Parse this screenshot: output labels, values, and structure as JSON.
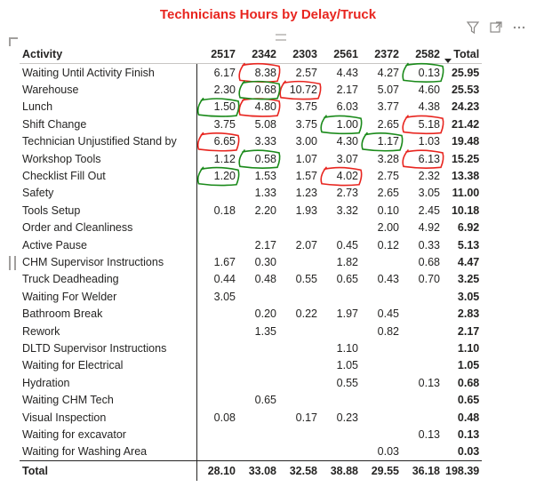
{
  "title": "Technicians Hours by Delay/Truck",
  "toolbar": {
    "icons": [
      "filter-icon",
      "focus-mode-icon",
      "more-options-icon"
    ]
  },
  "table": {
    "headers": [
      "Activity",
      "2517",
      "2342",
      "2303",
      "2561",
      "2372",
      "2582",
      "Total"
    ],
    "sorted_column": "Total",
    "rows": [
      [
        "Waiting Until Activity Finish",
        "6.17",
        "8.38",
        "2.57",
        "4.43",
        "4.27",
        "0.13",
        "25.95"
      ],
      [
        "Warehouse",
        "2.30",
        "0.68",
        "10.72",
        "2.17",
        "5.07",
        "4.60",
        "25.53"
      ],
      [
        "Lunch",
        "1.50",
        "4.80",
        "3.75",
        "6.03",
        "3.77",
        "4.38",
        "24.23"
      ],
      [
        "Shift Change",
        "3.75",
        "5.08",
        "3.75",
        "1.00",
        "2.65",
        "5.18",
        "21.42"
      ],
      [
        "Technician Unjustified Stand by",
        "6.65",
        "3.33",
        "3.00",
        "4.30",
        "1.17",
        "1.03",
        "19.48"
      ],
      [
        "Workshop Tools",
        "1.12",
        "0.58",
        "1.07",
        "3.07",
        "3.28",
        "6.13",
        "15.25"
      ],
      [
        "Checklist Fill Out",
        "1.20",
        "1.53",
        "1.57",
        "4.02",
        "2.75",
        "2.32",
        "13.38"
      ],
      [
        "Safety",
        "",
        "1.33",
        "1.23",
        "2.73",
        "2.65",
        "3.05",
        "11.00"
      ],
      [
        "Tools Setup",
        "0.18",
        "2.20",
        "1.93",
        "3.32",
        "0.10",
        "2.45",
        "10.18"
      ],
      [
        "Order and Cleanliness",
        "",
        "",
        "",
        "",
        "2.00",
        "4.92",
        "6.92"
      ],
      [
        "Active Pause",
        "",
        "2.17",
        "2.07",
        "0.45",
        "0.12",
        "0.33",
        "5.13"
      ],
      [
        "CHM Supervisor Instructions",
        "1.67",
        "0.30",
        "",
        "1.82",
        "",
        "0.68",
        "4.47"
      ],
      [
        "Truck Deadheading",
        "0.44",
        "0.48",
        "0.55",
        "0.65",
        "0.43",
        "0.70",
        "3.25"
      ],
      [
        "Waiting For Welder",
        "3.05",
        "",
        "",
        "",
        "",
        "",
        "3.05"
      ],
      [
        "Bathroom Break",
        "",
        "0.20",
        "0.22",
        "1.97",
        "0.45",
        "",
        "2.83"
      ],
      [
        "Rework",
        "",
        "1.35",
        "",
        "",
        "0.82",
        "",
        "2.17"
      ],
      [
        "DLTD Supervisor Instructions",
        "",
        "",
        "",
        "1.10",
        "",
        "",
        "1.10"
      ],
      [
        "Waiting for Electrical",
        "",
        "",
        "",
        "1.05",
        "",
        "",
        "1.05"
      ],
      [
        "Hydration",
        "",
        "",
        "",
        "0.55",
        "",
        "0.13",
        "0.68"
      ],
      [
        "Waiting CHM Tech",
        "",
        "0.65",
        "",
        "",
        "",
        "",
        "0.65"
      ],
      [
        "Visual Inspection",
        "0.08",
        "",
        "0.17",
        "0.23",
        "",
        "",
        "0.48"
      ],
      [
        "Waiting for excavator",
        "",
        "",
        "",
        "",
        "",
        "0.13",
        "0.13"
      ],
      [
        "Waiting for Washing Area",
        "",
        "",
        "",
        "",
        "0.03",
        "",
        "0.03"
      ]
    ],
    "footer": [
      "Total",
      "28.10",
      "33.08",
      "32.58",
      "38.88",
      "29.55",
      "36.18",
      "198.39"
    ]
  },
  "annotations": {
    "red": [
      [
        0,
        2
      ],
      [
        1,
        3
      ],
      [
        2,
        2
      ],
      [
        3,
        6
      ],
      [
        4,
        1
      ],
      [
        5,
        6
      ],
      [
        6,
        4
      ]
    ],
    "green": [
      [
        0,
        6
      ],
      [
        1,
        2
      ],
      [
        2,
        1
      ],
      [
        3,
        4
      ],
      [
        4,
        5
      ],
      [
        5,
        2
      ],
      [
        6,
        1
      ]
    ],
    "colors": {
      "red": "#e8251f",
      "green": "#1a8a1a"
    }
  },
  "colors": {
    "title": "#e8251f",
    "text": "#252423",
    "grid": "#c8c6c4"
  }
}
